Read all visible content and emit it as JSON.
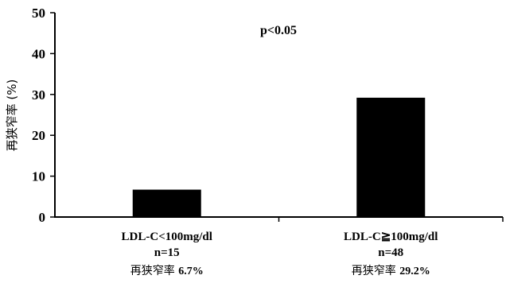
{
  "chart_data": {
    "type": "bar",
    "categories": [
      "LDL-C<100mg/dl",
      "LDL-C≧100mg/dl"
    ],
    "values": [
      6.7,
      29.2
    ],
    "n_labels": [
      "n=15",
      "n=48"
    ],
    "rate_labels": [
      {
        "prefix": "再狭窄率",
        "value": "6.7%"
      },
      {
        "prefix": "再狭窄率",
        "value": "29.2%"
      }
    ],
    "ylabel": "再狭窄率 (%)",
    "ylim": [
      0,
      50
    ],
    "yticks": [
      0,
      10,
      20,
      30,
      40,
      50
    ],
    "annotation": "p<0.05",
    "grid": false,
    "bar_color": "#000000"
  }
}
